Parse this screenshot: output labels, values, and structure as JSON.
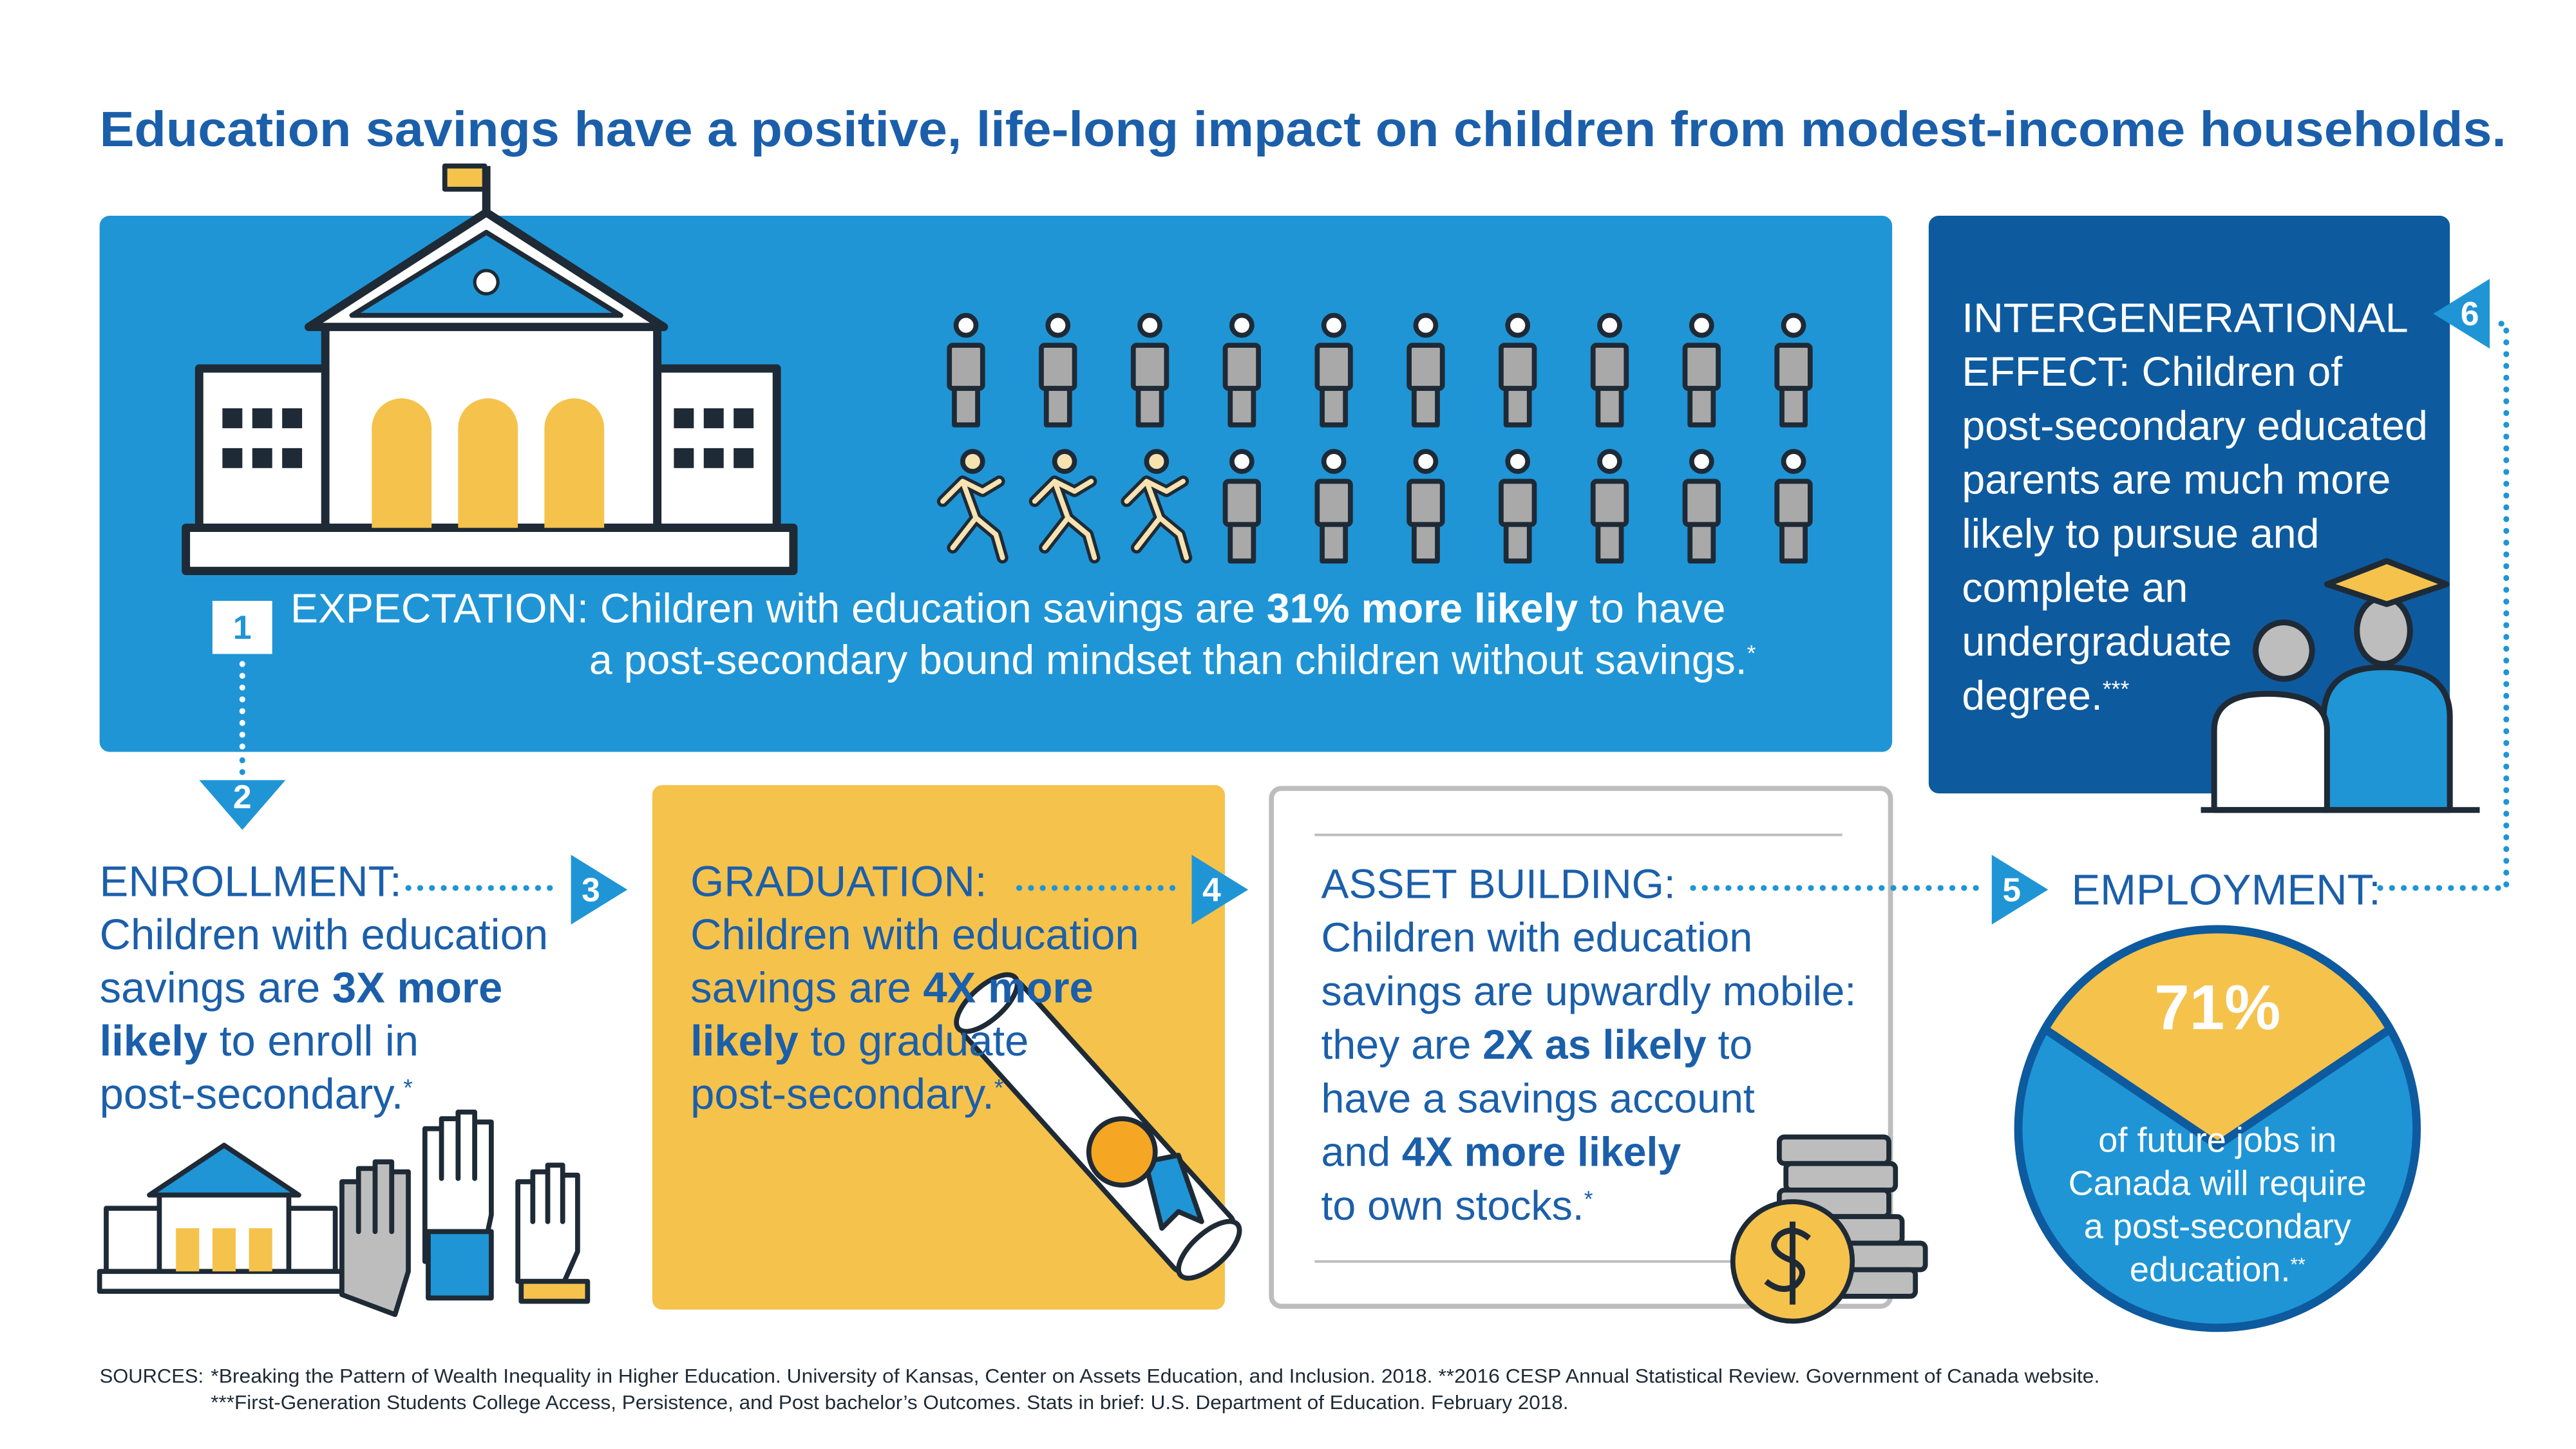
{
  "title": "Education savings have a positive, life-long impact on children from modest-income households.",
  "sections": [
    {
      "number": "1",
      "lines": [
        [
          {
            "t": "EXPECTATION: Children with education savings are "
          },
          {
            "t": "31% more likely",
            "b": true
          },
          {
            "t": " to have"
          }
        ],
        [
          {
            "t": "a post-secondary bound mindset than children without savings."
          },
          {
            "t": "*",
            "sup": true
          }
        ]
      ]
    },
    {
      "number": "2",
      "lines": [
        [
          {
            "t": "ENROLLMENT:"
          }
        ],
        [
          {
            "t": "Children with education"
          }
        ],
        [
          {
            "t": "savings are "
          },
          {
            "t": "3X more",
            "b": true
          }
        ],
        [
          {
            "t": "likely",
            "b": true
          },
          {
            "t": " to enroll in"
          }
        ],
        [
          {
            "t": "post-secondary."
          },
          {
            "t": "*",
            "sup": true
          }
        ]
      ]
    },
    {
      "number": "3",
      "lines": [
        [
          {
            "t": "GRADUATION:"
          }
        ],
        [
          {
            "t": "Children with education"
          }
        ],
        [
          {
            "t": "savings are "
          },
          {
            "t": "4X more",
            "b": true
          }
        ],
        [
          {
            "t": "likely",
            "b": true
          },
          {
            "t": " to graduate"
          }
        ],
        [
          {
            "t": "post-secondary."
          },
          {
            "t": "*",
            "sup": true
          }
        ]
      ]
    },
    {
      "number": "4",
      "lines": [
        [
          {
            "t": "ASSET BUILDING:"
          }
        ],
        [
          {
            "t": "Children with education"
          }
        ],
        [
          {
            "t": "savings are upwardly mobile:"
          }
        ],
        [
          {
            "t": "they are "
          },
          {
            "t": "2X as likely",
            "b": true
          },
          {
            "t": " to"
          }
        ],
        [
          {
            "t": "have a savings account"
          }
        ],
        [
          {
            "t": "and "
          },
          {
            "t": "4X more likely",
            "b": true
          }
        ],
        [
          {
            "t": "to own stocks."
          },
          {
            "t": "*",
            "sup": true
          }
        ]
      ]
    },
    {
      "number": "5",
      "heading": "EMPLOYMENT:",
      "stat": "71%",
      "lines": [
        [
          {
            "t": "of future jobs in"
          }
        ],
        [
          {
            "t": "Canada will require"
          }
        ],
        [
          {
            "t": "a post-secondary"
          }
        ],
        [
          {
            "t": "education."
          },
          {
            "t": "**",
            "sup": true
          }
        ]
      ]
    },
    {
      "number": "6",
      "lines": [
        [
          {
            "t": "INTERGENERATIONAL"
          }
        ],
        [
          {
            "t": "EFFECT: Children of"
          }
        ],
        [
          {
            "t": "post-secondary educated"
          }
        ],
        [
          {
            "t": "parents are much more"
          }
        ],
        [
          {
            "t": "likely to pursue and"
          }
        ],
        [
          {
            "t": "complete an"
          }
        ],
        [
          {
            "t": "undergraduate"
          }
        ],
        [
          {
            "t": "degree."
          },
          {
            "t": "***",
            "sup": true
          }
        ]
      ]
    }
  ],
  "sources": {
    "label": "SOURCES:",
    "lines": [
      "*Breaking the Pattern of Wealth Inequality in Higher Education. University of Kansas, Center on Assets Education, and Inclusion. 2018. **2016 CESP Annual Statistical Review. Government of Canada website.",
      "***First-Generation Students College Access, Persistence, and Post bachelor’s Outcomes. Stats in brief: U.S. Department of Education. February 2018."
    ]
  }
}
